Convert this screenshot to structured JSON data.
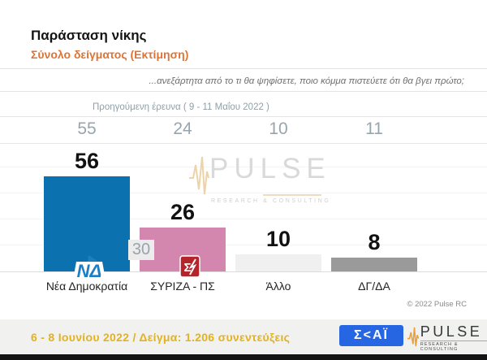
{
  "header": {
    "title": "Παράσταση νίκης",
    "subtitle": "Σύνολο δείγματος   (Εκτίμηση)",
    "question": "...ανεξάρτητα από το τι θα ψηφίσετε, ποιο κόμμα πιστεύετε ότι θα βγει πρώτο;",
    "previous_survey_label": "Προηγούμενη έρευνα ( 9 - 11 Μαΐου  2022 )"
  },
  "chart_data": {
    "type": "bar",
    "title": "Παράσταση νίκης",
    "subtitle": "Σύνολο δείγματος (Εκτίμηση)",
    "categories": [
      "Νέα Δημοκρατία",
      "ΣΥΡΙΖΑ - ΠΣ",
      "Άλλο",
      "ΔΓ/ΔΑ"
    ],
    "series": [
      {
        "name": "6 - 8 Ιουνίου 2022",
        "values": [
          56,
          26,
          10,
          8
        ]
      },
      {
        "name": "Προηγούμενη έρευνα ( 9 - 11 Μαΐου 2022 )",
        "values": [
          55,
          24,
          10,
          11
        ]
      }
    ],
    "bar_colors": [
      "#0b72af",
      "#d487ae",
      "#f0f0f0",
      "#9a9a9a"
    ],
    "nd_syriza_difference": 30,
    "xlabel": "",
    "ylabel": "",
    "ylim": [
      0,
      75
    ],
    "grid": "faint horizontal lines",
    "legend": "none"
  },
  "watermark": {
    "text": "PULSE",
    "subtext": "RESEARCH & CONSULTING"
  },
  "footer": {
    "copyright": "© 2022 Pulse RC",
    "survey_info": "6 - 8  Ιουνίου  2022  /  Δείγμα:  1.206 συνεντεύξεις",
    "skai_logo_text": "Σ<ΑΪ",
    "pulse_logo_text": "PULSE",
    "pulse_logo_subtext": "RESEARCH & CONSULTING"
  },
  "colors": {
    "accent_orange": "#dd7437",
    "footer_gold": "#e2b220",
    "previous_values_gray": "#97a5ad",
    "skai_blue": "#2766e2"
  }
}
